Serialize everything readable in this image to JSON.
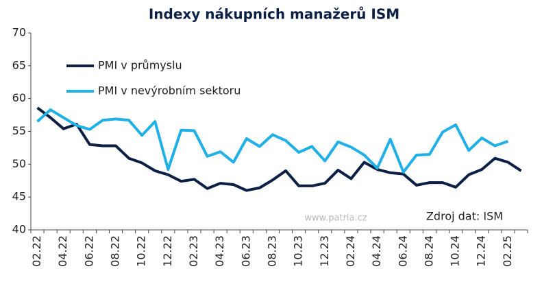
{
  "chart_data": {
    "type": "line",
    "title": "Indexy nákupních manažerů ISM",
    "categories": [
      "02.22",
      null,
      "04.22",
      null,
      "06.22",
      null,
      "08.22",
      null,
      "10.22",
      null,
      "12.22",
      null,
      "02.23",
      null,
      "04.23",
      null,
      "06.23",
      null,
      "08.23",
      null,
      "10.23",
      null,
      "12.23",
      null,
      "02.24",
      null,
      "04.24",
      null,
      "06.24",
      null,
      "08.24",
      null,
      "10.24",
      null,
      "12.24",
      null,
      "02.25",
      null
    ],
    "series": [
      {
        "name": "PMI v průmyslu",
        "color": "#0c1f45",
        "values": [
          58.6,
          57.1,
          55.4,
          56.1,
          53.0,
          52.8,
          52.8,
          50.9,
          50.2,
          49.0,
          48.4,
          47.4,
          47.7,
          46.3,
          47.1,
          46.9,
          46.0,
          46.4,
          47.6,
          49.0,
          46.7,
          46.7,
          47.1,
          49.1,
          47.8,
          50.3,
          49.2,
          48.7,
          48.5,
          46.8,
          47.2,
          47.2,
          46.5,
          48.4,
          49.2,
          50.9,
          50.3,
          49.0
        ]
      },
      {
        "name": "PMI v nevýrobním sektoru",
        "color": "#1eb0e6",
        "values": [
          56.5,
          58.3,
          57.1,
          55.9,
          55.3,
          56.7,
          56.9,
          56.7,
          54.4,
          56.5,
          49.2,
          55.2,
          55.1,
          51.2,
          51.9,
          50.3,
          53.9,
          52.7,
          54.5,
          53.6,
          51.8,
          52.7,
          50.5,
          53.4,
          52.6,
          51.4,
          49.4,
          53.8,
          48.8,
          51.4,
          51.5,
          54.9,
          56.0,
          52.1,
          54.0,
          52.8,
          53.5,
          null
        ]
      }
    ],
    "ylim": [
      40,
      70
    ],
    "yticks": [
      40,
      45,
      50,
      55,
      60,
      65,
      70
    ],
    "annotations": [
      "Zdroj dat: ISM",
      "www.patria.cz"
    ]
  }
}
